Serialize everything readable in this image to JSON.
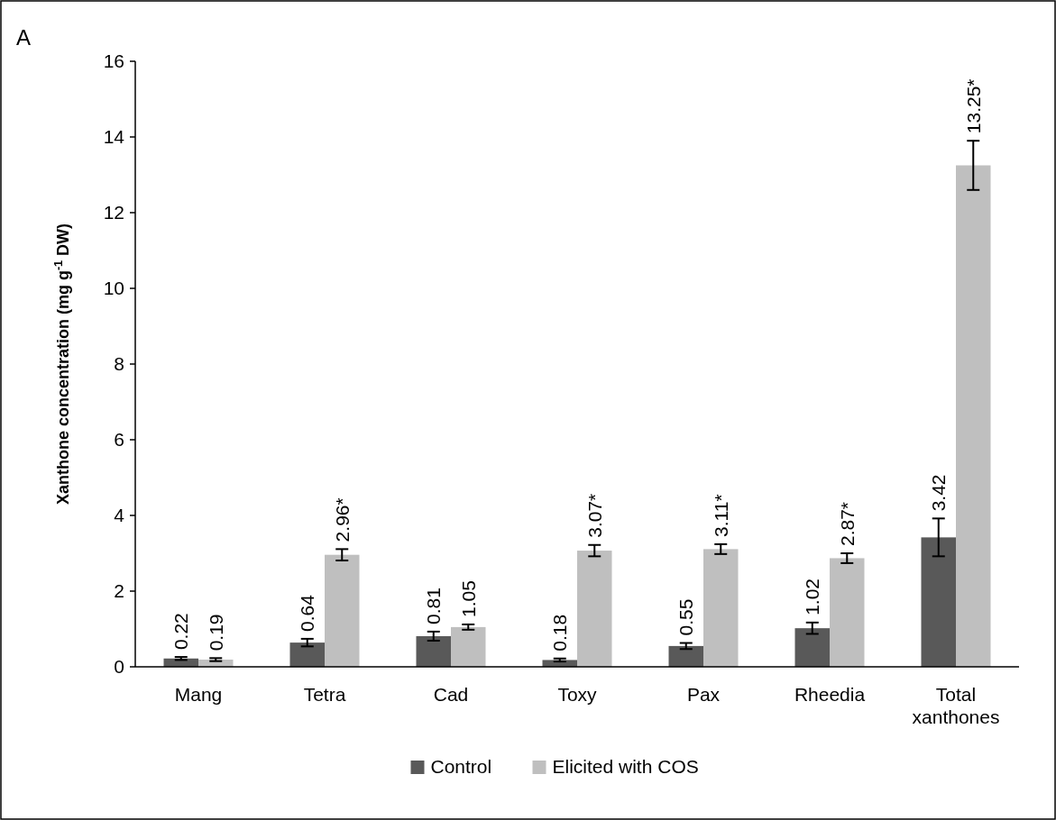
{
  "chart_data": {
    "type": "bar",
    "ylabel": "Xanthone concentration (mg g$^{-1}$ DW)",
    "annotations": [
      "A"
    ],
    "categories": [
      "Mang",
      "Tetra",
      "Cad",
      "Toxy",
      "Pax",
      "Rheedia",
      "Total xanthones"
    ],
    "series": [
      {
        "name": "Control",
        "color": "#595959",
        "values": [
          0.22,
          0.64,
          0.81,
          0.18,
          0.55,
          1.02,
          3.42
        ],
        "errors": [
          0.04,
          0.1,
          0.12,
          0.04,
          0.08,
          0.15,
          0.5
        ],
        "value_labels": [
          "0.22",
          "0.64",
          "0.81",
          "0.18",
          "0.55",
          "1.02",
          "3.42"
        ]
      },
      {
        "name": "Elicited with COS",
        "color": "#bfbfbf",
        "values": [
          0.19,
          2.96,
          1.05,
          3.07,
          3.11,
          2.87,
          13.25
        ],
        "errors": [
          0.04,
          0.15,
          0.07,
          0.15,
          0.13,
          0.13,
          0.65
        ],
        "value_labels": [
          "0.19",
          "2.96*",
          "1.05",
          "3.07*",
          "3.11*",
          "2.87*",
          "13.25*"
        ]
      }
    ],
    "ylim": [
      0,
      16
    ],
    "yticks": [
      0,
      2,
      4,
      6,
      8,
      10,
      12,
      14,
      16
    ],
    "grid": false,
    "legend": "bottom"
  }
}
